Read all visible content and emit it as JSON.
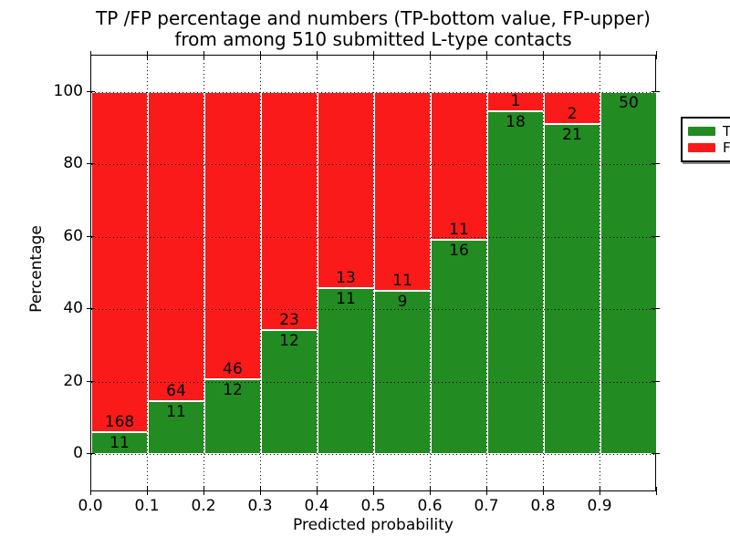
{
  "figure": {
    "title_line1": "TP /FP percentage and numbers (TP-bottom value, FP-upper)",
    "title_line2": "from among 510 submitted L-type contacts"
  },
  "chart_data": {
    "type": "bar",
    "stacked": true,
    "normalized": "each bar totals 100%",
    "title": "TP /FP percentage and numbers (TP-bottom value, FP-upper) from among 510 submitted L-type contacts",
    "xlabel": "Predicted probability",
    "ylabel": "Percentage",
    "total_contacts": 510,
    "bins_start": [
      0.0,
      0.1,
      0.2,
      0.3,
      0.4,
      0.5,
      0.6,
      0.7,
      0.8,
      0.9
    ],
    "bin_width": 0.1,
    "x_tick_labels": [
      "0.0",
      "0.1",
      "0.2",
      "0.3",
      "0.4",
      "0.5",
      "0.6",
      "0.7",
      "0.8",
      "0.9"
    ],
    "y_tick_values": [
      0,
      20,
      40,
      60,
      80,
      100
    ],
    "y_tick_labels": [
      "0",
      "20",
      "40",
      "60",
      "80",
      "100"
    ],
    "xlim": [
      0.0,
      1.0
    ],
    "ylim": [
      -10.6,
      110.1
    ],
    "grid": {
      "visible": true,
      "style": "dotted",
      "color": "#000000"
    },
    "series": [
      {
        "name": "TP",
        "color": "#228B22",
        "counts": [
          11,
          11,
          12,
          12,
          11,
          9,
          16,
          18,
          21,
          50
        ],
        "labels": [
          "11",
          "11",
          "12",
          "12",
          "11",
          "9",
          "16",
          "18",
          "21",
          "50"
        ]
      },
      {
        "name": "FP",
        "color": "#fa1a1a",
        "counts": [
          168,
          64,
          46,
          23,
          13,
          11,
          11,
          1,
          2,
          0
        ],
        "labels": [
          "168",
          "64",
          "46",
          "23",
          "13",
          "11",
          "11",
          "1",
          "2",
          ""
        ]
      }
    ],
    "legend": {
      "position": "upper right",
      "items": [
        {
          "label": "TP",
          "color": "#228B22"
        },
        {
          "label": "FP",
          "color": "#fa1a1a"
        }
      ]
    }
  }
}
